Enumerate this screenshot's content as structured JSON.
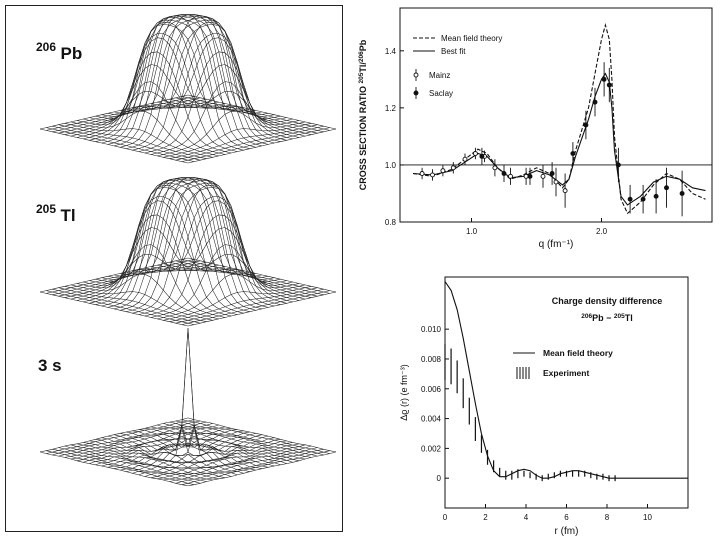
{
  "left_panel": {
    "surfaces": [
      {
        "label_mass": "206",
        "label_symbol": "Pb",
        "shape": "plateau"
      },
      {
        "label_mass": "205",
        "label_symbol": "Tl",
        "shape": "plateau"
      },
      {
        "label_mass": "",
        "label_symbol": "3 s",
        "shape": "peak"
      }
    ]
  },
  "chart_data": [
    {
      "type": "line",
      "title": "",
      "xlabel": "q (fm⁻¹)",
      "ylabel_parts": [
        "CROSS SECTION RATIO ",
        "205",
        "Tl/",
        "206",
        "Pb"
      ],
      "xlim": [
        0.45,
        2.85
      ],
      "ylim": [
        0.8,
        1.55
      ],
      "xticks": [
        1.0,
        2.0
      ],
      "xtick_labels": [
        "1.0",
        "2.0"
      ],
      "yticks": [
        0.8,
        1.0,
        1.2,
        1.4
      ],
      "ytick_labels": [
        "0.8",
        "1.0",
        "1.2",
        "1.4"
      ],
      "reference_line": 1.0,
      "legend": {
        "placement": "top-left",
        "lines": [
          "Mean field theory",
          "Best fit"
        ],
        "markers": [
          "Mainz",
          "Saclay"
        ]
      },
      "series": [
        {
          "name": "Mean field theory",
          "style": "dashed",
          "x": [
            0.55,
            0.7,
            0.85,
            0.95,
            1.05,
            1.12,
            1.2,
            1.3,
            1.4,
            1.5,
            1.6,
            1.7,
            1.75,
            1.8,
            1.9,
            1.95,
            2.0,
            2.03,
            2.06,
            2.08,
            2.1,
            2.15,
            2.2,
            2.3,
            2.4,
            2.5,
            2.6,
            2.7,
            2.8
          ],
          "y": [
            0.97,
            0.96,
            0.985,
            1.02,
            1.055,
            1.04,
            0.99,
            0.95,
            0.965,
            0.99,
            0.97,
            0.92,
            0.95,
            1.05,
            1.2,
            1.32,
            1.44,
            1.49,
            1.44,
            1.3,
            1.1,
            0.88,
            0.83,
            0.87,
            0.93,
            0.97,
            0.95,
            0.9,
            0.88
          ]
        },
        {
          "name": "Best fit",
          "style": "solid",
          "x": [
            0.55,
            0.7,
            0.85,
            0.95,
            1.05,
            1.12,
            1.2,
            1.3,
            1.4,
            1.5,
            1.6,
            1.7,
            1.75,
            1.8,
            1.9,
            1.95,
            2.0,
            2.03,
            2.06,
            2.08,
            2.1,
            2.15,
            2.2,
            2.3,
            2.4,
            2.5,
            2.6,
            2.7,
            2.8
          ],
          "y": [
            0.97,
            0.965,
            0.98,
            1.01,
            1.04,
            1.03,
            0.99,
            0.955,
            0.96,
            0.98,
            0.965,
            0.93,
            0.95,
            1.03,
            1.16,
            1.24,
            1.3,
            1.32,
            1.29,
            1.2,
            1.05,
            0.89,
            0.86,
            0.89,
            0.94,
            0.96,
            0.95,
            0.92,
            0.91
          ]
        },
        {
          "name": "Mainz",
          "style": "open-marker",
          "x": [
            0.62,
            0.7,
            0.78,
            0.86,
            0.95,
            1.03,
            1.1,
            1.18,
            1.3,
            1.42,
            1.55,
            1.65,
            1.72
          ],
          "y": [
            0.97,
            0.965,
            0.98,
            0.99,
            1.02,
            1.04,
            1.03,
            0.99,
            0.96,
            0.96,
            0.96,
            0.94,
            0.91
          ],
          "err": [
            0.02,
            0.02,
            0.02,
            0.02,
            0.02,
            0.02,
            0.02,
            0.03,
            0.03,
            0.03,
            0.04,
            0.05,
            0.06
          ]
        },
        {
          "name": "Saclay",
          "style": "filled-marker",
          "x": [
            1.08,
            1.25,
            1.45,
            1.62,
            1.78,
            1.88,
            1.95,
            2.02,
            2.06,
            2.13,
            2.22,
            2.32,
            2.42,
            2.5,
            2.62
          ],
          "y": [
            1.03,
            0.97,
            0.96,
            0.97,
            1.04,
            1.14,
            1.22,
            1.3,
            1.28,
            1.0,
            0.88,
            0.88,
            0.89,
            0.92,
            0.9
          ],
          "err": [
            0.03,
            0.03,
            0.03,
            0.04,
            0.04,
            0.05,
            0.05,
            0.06,
            0.06,
            0.06,
            0.05,
            0.05,
            0.06,
            0.07,
            0.08
          ]
        }
      ]
    },
    {
      "type": "line",
      "title": "Charge density difference",
      "title_line2_parts": [
        "206",
        "Pb",
        " − ",
        "205",
        "Tl"
      ],
      "xlabel": "r (fm)",
      "ylabel": "Δϱ (r) (e fm⁻³)",
      "xlim": [
        0,
        12
      ],
      "ylim": [
        -0.002,
        0.0135
      ],
      "xticks": [
        0,
        2,
        4,
        6,
        8,
        10
      ],
      "xtick_labels": [
        "0",
        "2",
        "4",
        "6",
        "8",
        "10"
      ],
      "yticks": [
        0,
        0.002,
        0.004,
        0.006,
        0.008,
        0.01
      ],
      "ytick_labels": [
        "0",
        "0.002",
        "0.004",
        "0.006",
        "0.008",
        "0.010"
      ],
      "legend": {
        "placement": "top-right",
        "lines": [
          "Mean field theory",
          "Experiment"
        ]
      },
      "series": [
        {
          "name": "Mean field theory",
          "style": "solid",
          "x": [
            0,
            0.3,
            0.6,
            0.9,
            1.2,
            1.5,
            1.8,
            2.1,
            2.4,
            2.7,
            3.0,
            3.3,
            3.6,
            3.9,
            4.2,
            4.5,
            4.8,
            5.1,
            5.4,
            5.7,
            6.0,
            6.3,
            6.6,
            6.9,
            7.2,
            7.5,
            7.8,
            8.1,
            8.4,
            8.7,
            9.0,
            10,
            12
          ],
          "y": [
            0.0132,
            0.0126,
            0.0113,
            0.0094,
            0.0072,
            0.005,
            0.003,
            0.0015,
            0.0005,
            0.0001,
            0.0001,
            0.0003,
            0.0005,
            0.0006,
            0.0005,
            0.0002,
            0.0,
            0.0,
            0.0001,
            0.0003,
            0.0004,
            0.0005,
            0.0005,
            0.0004,
            0.0003,
            0.0002,
            0.0001,
            0.0,
            0.0,
            0.0,
            0.0,
            0.0,
            0.0
          ]
        },
        {
          "name": "Experiment",
          "style": "band",
          "x": [
            0,
            0.3,
            0.6,
            0.9,
            1.2,
            1.5,
            1.8,
            2.1,
            2.4,
            2.7,
            3.0,
            3.3,
            3.6,
            3.9,
            4.2,
            4.5,
            4.8,
            5.1,
            5.4,
            5.7,
            6.0,
            6.3,
            6.6,
            6.9,
            7.2,
            7.5,
            7.8,
            8.1,
            8.4
          ],
          "y": [
            0.0078,
            0.0075,
            0.0068,
            0.0057,
            0.0045,
            0.0033,
            0.0023,
            0.0014,
            0.0008,
            0.0004,
            0.0002,
            0.0002,
            0.0003,
            0.0003,
            0.0002,
            0.0001,
            0.0,
            0.0001,
            0.0002,
            0.0003,
            0.0003,
            0.0003,
            0.0003,
            0.0003,
            0.0002,
            0.0001,
            0.0001,
            0.0,
            0.0
          ],
          "err": [
            0.0012,
            0.0012,
            0.0011,
            0.001,
            0.0009,
            0.0008,
            0.0006,
            0.0005,
            0.0004,
            0.0003,
            0.0003,
            0.0003,
            0.0003,
            0.0002,
            0.0002,
            0.0002,
            0.0002,
            0.0002,
            0.0002,
            0.0002,
            0.0002,
            0.0002,
            0.0002,
            0.0002,
            0.0002,
            0.0002,
            0.0002,
            0.0002,
            0.0002
          ]
        }
      ]
    }
  ]
}
